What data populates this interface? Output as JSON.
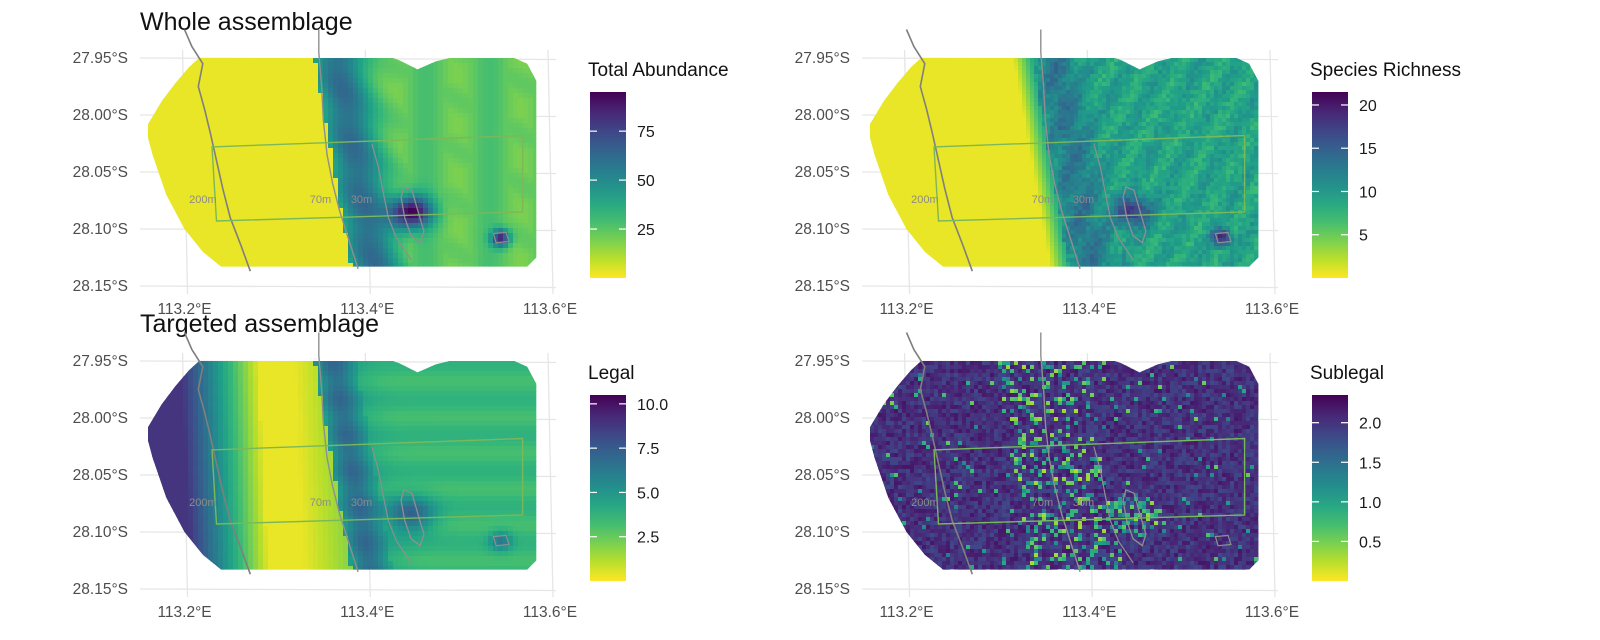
{
  "sections": {
    "whole_title": "Whole assemblage",
    "targeted_title": "Targeted assemblage"
  },
  "map_extent": {
    "lon": [
      113.16,
      113.6
    ],
    "lat": [
      -28.15,
      -27.95
    ]
  },
  "axes": {
    "lat_ticks": [
      {
        "value": -27.95,
        "label": "27.95°S"
      },
      {
        "value": -28.0,
        "label": "28.00°S"
      },
      {
        "value": -28.05,
        "label": "28.05°S"
      },
      {
        "value": -28.1,
        "label": "28.10°S"
      },
      {
        "value": -28.15,
        "label": "28.15°S"
      }
    ],
    "lon_ticks": [
      {
        "value": 113.2,
        "label": "113.2°E"
      },
      {
        "value": 113.4,
        "label": "113.4°E"
      },
      {
        "value": 113.6,
        "label": "113.6°E"
      }
    ]
  },
  "depth_labels": [
    {
      "text": "200m",
      "lon": 113.205,
      "lat": -28.077
    },
    {
      "text": "70m",
      "lon": 113.337,
      "lat": -28.077
    },
    {
      "text": "30m",
      "lon": 113.382,
      "lat": -28.077
    }
  ],
  "colors": {
    "viridis_low": "#fde725",
    "viridis_high": "#440154",
    "contour": "#8f8f8f",
    "coastline": "#7f7f7f",
    "study_box": "#7ab85a",
    "grid": "#e6e6e6"
  },
  "chart_data": [
    {
      "type": "heatmap",
      "panel": "top-left",
      "legend_title": "Total Abundance",
      "colorscale": "viridis (reversed)",
      "value_range": [
        0,
        95
      ],
      "legend_ticks": [
        25,
        50,
        75
      ],
      "pattern": "smooth"
    },
    {
      "type": "heatmap",
      "panel": "top-right",
      "legend_title": "Species Richness",
      "colorscale": "viridis (reversed)",
      "value_range": [
        0,
        21.5
      ],
      "legend_ticks": [
        5,
        10,
        15,
        20
      ],
      "pattern": "textured"
    },
    {
      "type": "heatmap",
      "panel": "bottom-left",
      "legend_title": "Legal",
      "colorscale": "viridis (reversed)",
      "value_range": [
        0,
        10.5
      ],
      "legend_ticks": [
        2.5,
        5.0,
        7.5,
        10.0
      ],
      "pattern": "smooth"
    },
    {
      "type": "heatmap",
      "panel": "bottom-right",
      "legend_title": "Sublegal",
      "colorscale": "viridis (reversed)",
      "value_range": [
        0,
        2.35
      ],
      "legend_ticks": [
        0.5,
        1.0,
        1.5,
        2.0
      ],
      "pattern": "noisy"
    }
  ]
}
